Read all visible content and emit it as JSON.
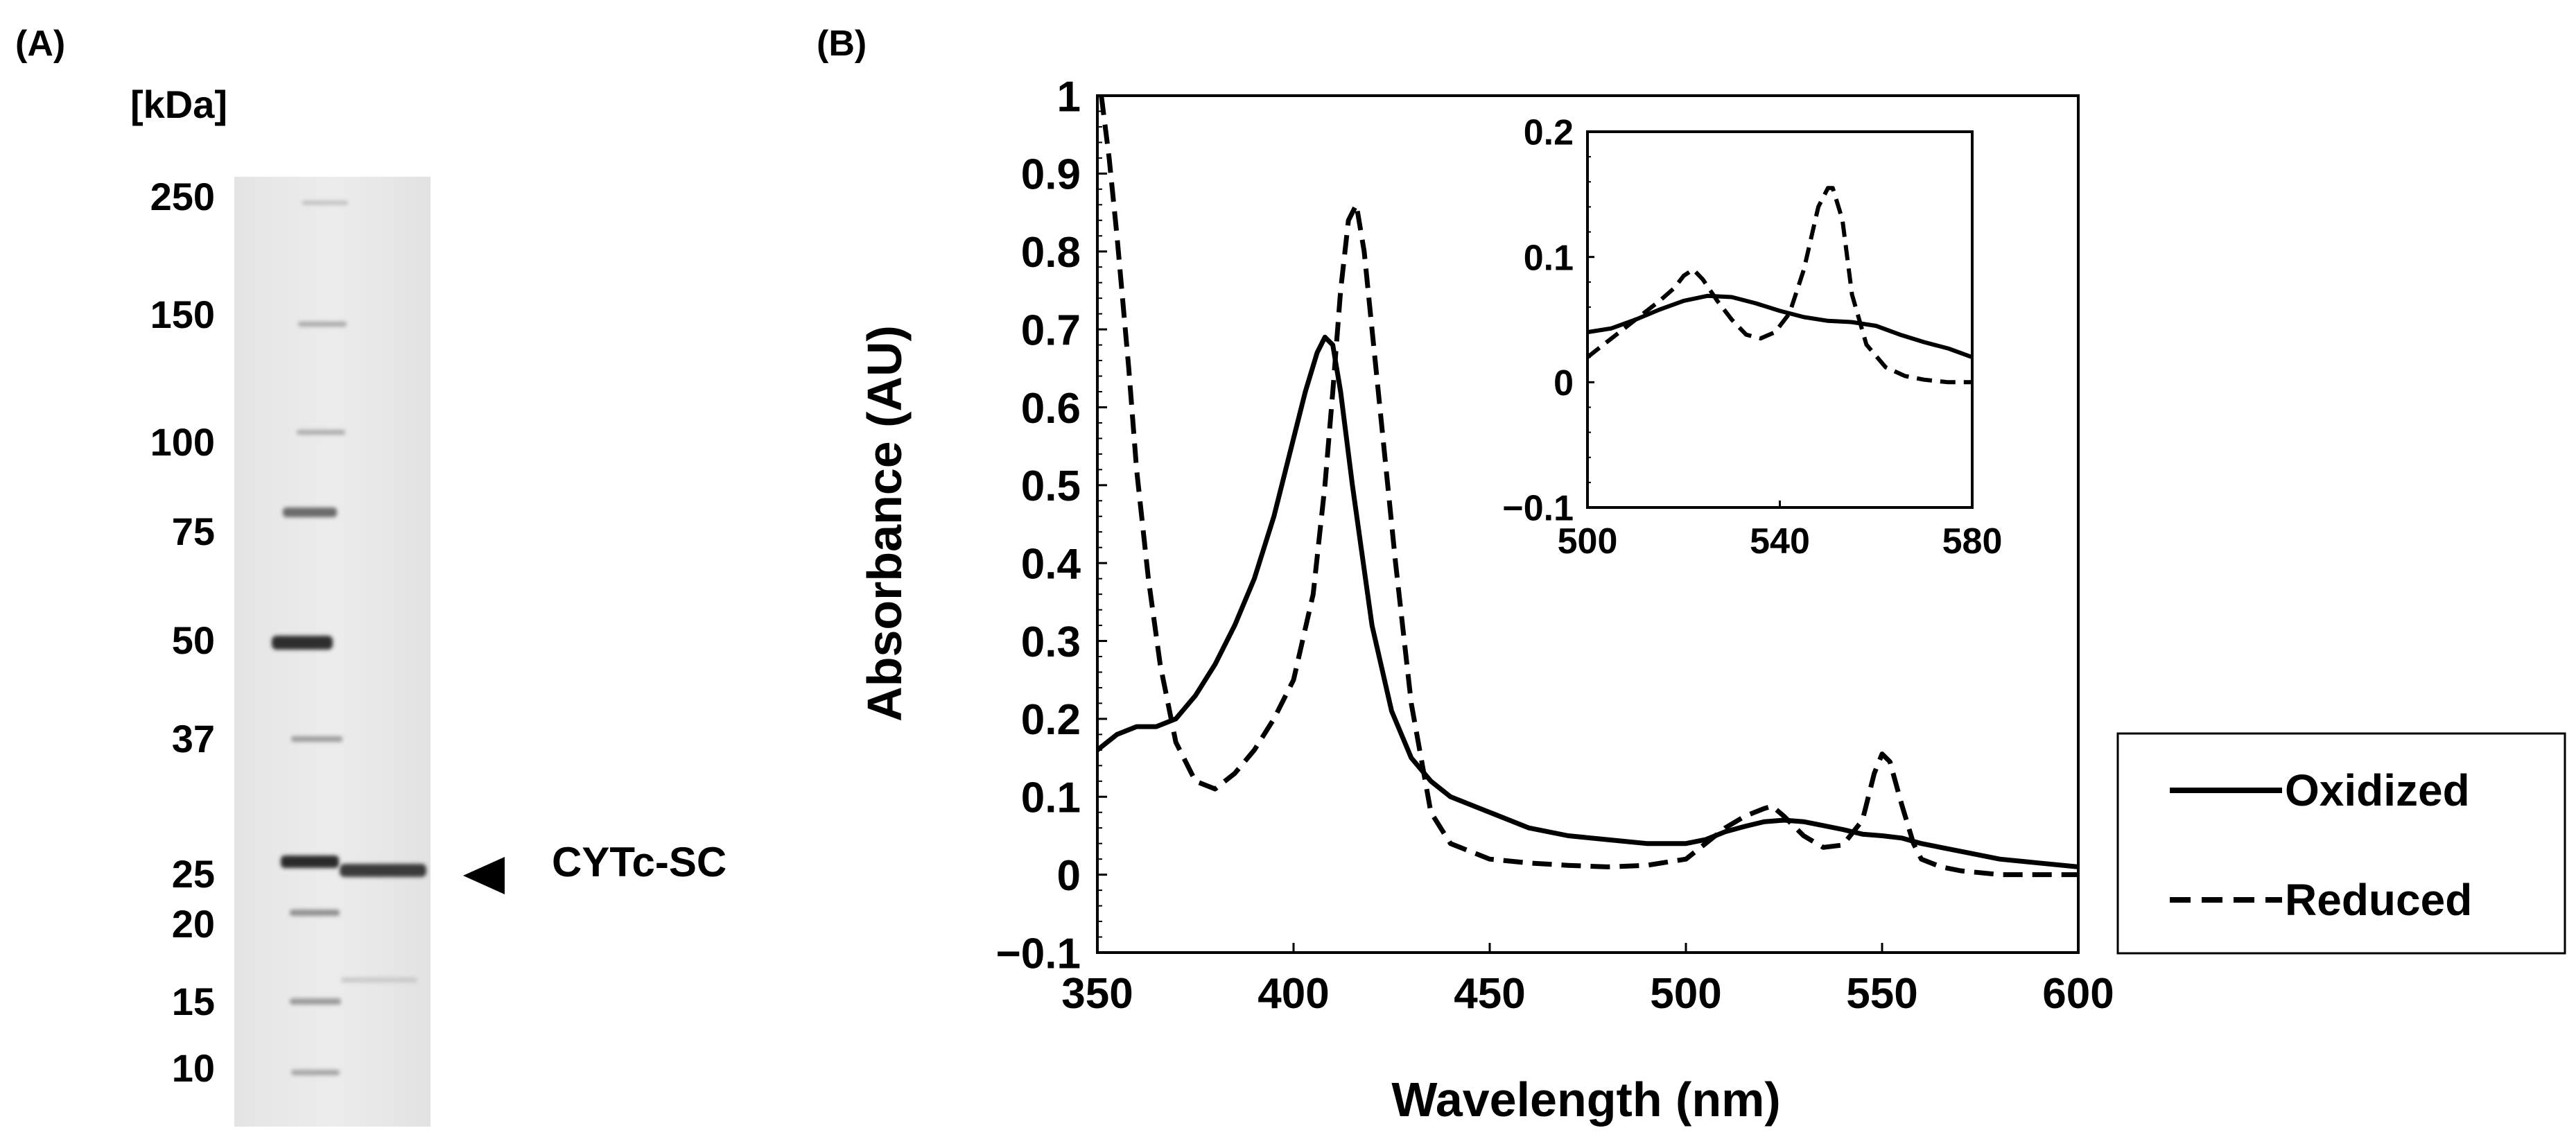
{
  "panel_a": {
    "label": "(A)",
    "unit_label": "[kDa]",
    "markers": [
      "250",
      "150",
      "100",
      "75",
      "50",
      "37",
      "25",
      "20",
      "15",
      "10"
    ],
    "band_label": "CYTc-SC"
  },
  "panel_b": {
    "label": "(B)"
  },
  "chart_data": [
    {
      "type": "line",
      "title": "",
      "xlabel": "Wavelength (nm)",
      "ylabel": "Absorbance (AU)",
      "xlim": [
        350,
        600
      ],
      "ylim": [
        -0.1,
        1
      ],
      "x_ticks": [
        350,
        400,
        450,
        500,
        550,
        600
      ],
      "y_ticks": [
        -0.1,
        0,
        0.1,
        0.2,
        0.3,
        0.4,
        0.5,
        0.6,
        0.7,
        0.8,
        0.9,
        1
      ],
      "x_tick_labels": [
        "350",
        "400",
        "450",
        "500",
        "550",
        "600"
      ],
      "y_tick_labels": [
        "−0.1",
        "0",
        "0.1",
        "0.2",
        "0.3",
        "0.4",
        "0.5",
        "0.6",
        "0.7",
        "0.8",
        "0.9",
        "1"
      ],
      "grid": false,
      "legend_position": "right",
      "series": [
        {
          "name": "Oxidized",
          "style": "solid",
          "x": [
            350,
            355,
            360,
            365,
            370,
            375,
            380,
            385,
            390,
            395,
            400,
            403,
            406,
            408,
            410,
            412,
            415,
            420,
            425,
            430,
            435,
            440,
            450,
            460,
            470,
            480,
            490,
            500,
            505,
            510,
            515,
            520,
            525,
            530,
            535,
            540,
            545,
            550,
            555,
            560,
            570,
            580,
            590,
            600
          ],
          "y": [
            0.16,
            0.18,
            0.19,
            0.19,
            0.2,
            0.23,
            0.27,
            0.32,
            0.38,
            0.46,
            0.56,
            0.62,
            0.67,
            0.69,
            0.68,
            0.62,
            0.5,
            0.32,
            0.21,
            0.15,
            0.12,
            0.1,
            0.08,
            0.06,
            0.05,
            0.045,
            0.04,
            0.04,
            0.045,
            0.055,
            0.062,
            0.068,
            0.07,
            0.068,
            0.063,
            0.058,
            0.052,
            0.05,
            0.047,
            0.04,
            0.03,
            0.02,
            0.015,
            0.01
          ]
        },
        {
          "name": "Reduced",
          "style": "dashed",
          "x": [
            351,
            353,
            355,
            358,
            360,
            363,
            366,
            370,
            375,
            380,
            385,
            390,
            395,
            400,
            405,
            408,
            410,
            412,
            414,
            416,
            418,
            420,
            423,
            426,
            430,
            435,
            440,
            450,
            460,
            470,
            480,
            490,
            500,
            505,
            510,
            515,
            520,
            522,
            525,
            530,
            535,
            540,
            545,
            548,
            550,
            552,
            555,
            558,
            560,
            565,
            570,
            580,
            590,
            600
          ],
          "y": [
            1.0,
            0.92,
            0.82,
            0.65,
            0.52,
            0.38,
            0.27,
            0.17,
            0.12,
            0.11,
            0.13,
            0.16,
            0.2,
            0.25,
            0.36,
            0.5,
            0.62,
            0.75,
            0.84,
            0.86,
            0.8,
            0.7,
            0.55,
            0.4,
            0.22,
            0.08,
            0.04,
            0.02,
            0.015,
            0.012,
            0.01,
            0.012,
            0.02,
            0.04,
            0.06,
            0.075,
            0.085,
            0.088,
            0.075,
            0.05,
            0.035,
            0.038,
            0.07,
            0.13,
            0.155,
            0.145,
            0.09,
            0.04,
            0.02,
            0.01,
            0.005,
            0.0,
            0.0,
            0.0
          ]
        }
      ]
    },
    {
      "type": "line",
      "title": "",
      "xlabel": "",
      "ylabel": "",
      "xlim": [
        500,
        580
      ],
      "ylim": [
        -0.1,
        0.2
      ],
      "x_ticks": [
        500,
        540,
        580
      ],
      "y_ticks": [
        -0.1,
        0,
        0.1,
        0.2
      ],
      "x_tick_labels": [
        "500",
        "540",
        "580"
      ],
      "y_tick_labels": [
        "−0.1",
        "0",
        "0.1",
        "0.2"
      ],
      "grid": false,
      "series": [
        {
          "name": "Oxidized",
          "style": "solid",
          "x": [
            500,
            505,
            510,
            515,
            520,
            525,
            530,
            535,
            540,
            545,
            550,
            555,
            560,
            565,
            570,
            575,
            580
          ],
          "y": [
            0.04,
            0.043,
            0.05,
            0.058,
            0.065,
            0.069,
            0.068,
            0.063,
            0.057,
            0.052,
            0.049,
            0.048,
            0.045,
            0.038,
            0.032,
            0.027,
            0.02
          ]
        },
        {
          "name": "Reduced",
          "style": "dashed",
          "x": [
            500,
            505,
            510,
            515,
            518,
            520,
            522,
            524,
            527,
            530,
            533,
            536,
            539,
            542,
            545,
            548,
            550,
            551,
            553,
            555,
            558,
            562,
            566,
            570,
            575,
            580
          ],
          "y": [
            0.02,
            0.035,
            0.05,
            0.065,
            0.075,
            0.085,
            0.09,
            0.082,
            0.065,
            0.05,
            0.038,
            0.035,
            0.04,
            0.055,
            0.09,
            0.14,
            0.155,
            0.155,
            0.13,
            0.07,
            0.03,
            0.012,
            0.005,
            0.002,
            0.0,
            0.0
          ]
        }
      ]
    }
  ]
}
